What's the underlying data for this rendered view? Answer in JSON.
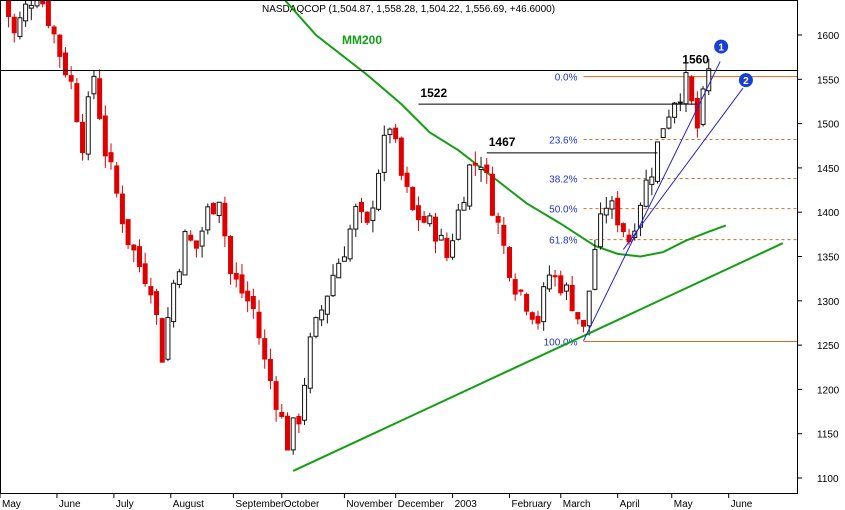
{
  "header": "NASDAQCOP (1,504.87, 1,558.28, 1,504.22, 1,556.69, +46.6000)",
  "chart_data": {
    "type": "candlestick",
    "y_ticks": [
      1100,
      1150,
      1200,
      1250,
      1300,
      1350,
      1400,
      1450,
      1500,
      1550,
      1600
    ],
    "ylim": [
      1090,
      1660
    ],
    "month_labels": [
      {
        "label": "May",
        "x": 0
      },
      {
        "label": "June",
        "x": 10
      },
      {
        "label": "July",
        "x": 20
      },
      {
        "label": "August",
        "x": 30
      },
      {
        "label": "September",
        "x": 41
      },
      {
        "label": "October",
        "x": 49.5
      },
      {
        "label": "November",
        "x": 60.5
      },
      {
        "label": "December",
        "x": 69.5
      },
      {
        "label": "2003",
        "x": 79.5
      },
      {
        "label": "February",
        "x": 89.5
      },
      {
        "label": "March",
        "x": 98.5
      },
      {
        "label": "April",
        "x": 108.5
      },
      {
        "label": "May",
        "x": 118
      },
      {
        "label": "June",
        "x": 128
      }
    ],
    "price_path": [
      [
        0,
        1645
      ],
      [
        2,
        1600
      ],
      [
        4,
        1630
      ],
      [
        6,
        1655
      ],
      [
        8,
        1620
      ],
      [
        10,
        1580
      ],
      [
        12,
        1545
      ],
      [
        14,
        1480
      ],
      [
        16,
        1555
      ],
      [
        18,
        1470
      ],
      [
        20,
        1420
      ],
      [
        22,
        1370
      ],
      [
        24,
        1340
      ],
      [
        26,
        1320
      ],
      [
        28,
        1240
      ],
      [
        30,
        1320
      ],
      [
        32,
        1370
      ],
      [
        34,
        1360
      ],
      [
        36,
        1400
      ],
      [
        38,
        1420
      ],
      [
        40,
        1330
      ],
      [
        42,
        1310
      ],
      [
        44,
        1290
      ],
      [
        46,
        1230
      ],
      [
        48,
        1190
      ],
      [
        50,
        1140
      ],
      [
        52,
        1170
      ],
      [
        54,
        1250
      ],
      [
        56,
        1290
      ],
      [
        58,
        1330
      ],
      [
        60,
        1360
      ],
      [
        62,
        1400
      ],
      [
        64,
        1380
      ],
      [
        66,
        1450
      ],
      [
        68,
        1500
      ],
      [
        70,
        1440
      ],
      [
        72,
        1400
      ],
      [
        74,
        1390
      ],
      [
        76,
        1380
      ],
      [
        78,
        1350
      ],
      [
        80,
        1400
      ],
      [
        82,
        1450
      ],
      [
        84,
        1460
      ],
      [
        86,
        1410
      ],
      [
        88,
        1360
      ],
      [
        90,
        1320
      ],
      [
        92,
        1300
      ],
      [
        94,
        1280
      ],
      [
        96,
        1330
      ],
      [
        98,
        1320
      ],
      [
        100,
        1300
      ],
      [
        102,
        1265
      ],
      [
        104,
        1360
      ],
      [
        106,
        1410
      ],
      [
        108,
        1395
      ],
      [
        110,
        1370
      ],
      [
        112,
        1415
      ],
      [
        114,
        1450
      ],
      [
        116,
        1500
      ],
      [
        118,
        1530
      ],
      [
        120,
        1545
      ],
      [
        122,
        1495
      ],
      [
        124,
        1557
      ]
    ],
    "ma200": [
      [
        46,
        1665
      ],
      [
        55,
        1600
      ],
      [
        64,
        1555
      ],
      [
        70,
        1522
      ],
      [
        75,
        1490
      ],
      [
        80,
        1470
      ],
      [
        86,
        1440
      ],
      [
        92,
        1410
      ],
      [
        98,
        1387
      ],
      [
        104,
        1362
      ],
      [
        108,
        1353
      ],
      [
        112,
        1350
      ],
      [
        116,
        1355
      ],
      [
        120,
        1368
      ],
      [
        124,
        1378
      ],
      [
        127,
        1385
      ]
    ],
    "ma200_label": "MM200",
    "support_line": {
      "from": [
        51,
        1108
      ],
      "to": [
        137,
        1365
      ]
    },
    "trendline_1": {
      "from": [
        102,
        1255
      ],
      "to": [
        126,
        1570
      ]
    },
    "trendline_2": {
      "from": [
        109,
        1358
      ],
      "to": [
        130,
        1540
      ]
    },
    "trendline_labels": [
      "1",
      "2"
    ],
    "horizontal_line": 1560,
    "peaks": [
      {
        "label": "1522",
        "x": 73,
        "y": 1522,
        "line_to": 122
      },
      {
        "label": "1467",
        "x": 85,
        "y": 1467,
        "line_to": 115
      },
      {
        "label": "1560",
        "x": 119,
        "y": 1560
      }
    ],
    "fib_levels": [
      {
        "label": "0.0%",
        "value": 1553
      },
      {
        "label": "23.6%",
        "value": 1482
      },
      {
        "label": "38.2%",
        "value": 1438
      },
      {
        "label": "50.0%",
        "value": 1404
      },
      {
        "label": "61.8%",
        "value": 1369
      },
      {
        "label": "100.0%",
        "value": 1254
      }
    ],
    "colors": {
      "bull": "#111111",
      "bear": "#e00000",
      "ma200": "#129f12",
      "support": "#129f12",
      "trend": "#2222cc",
      "fib": "#d96a20",
      "fib_text": "#2233cc",
      "grid": "#000000"
    }
  }
}
